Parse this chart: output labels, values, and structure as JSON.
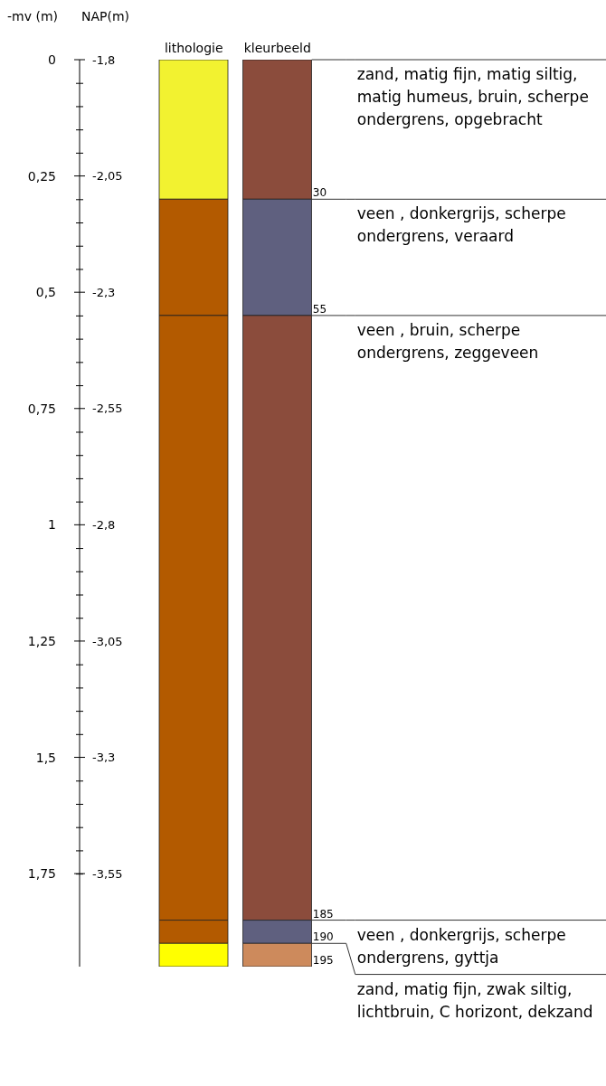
{
  "chart_data": {
    "type": "bar",
    "stacked": true,
    "ylabel": "-mv (m)",
    "y2label": "NAP(m)",
    "categories": [
      "lithologie",
      "kleurbeeld"
    ],
    "series": [
      {
        "name": "zand, matig fijn, matig siltig, matig humeus, bruin, scherpe ondergrens, opgebracht",
        "colors": [
          "#f2f230",
          "#8b4c3c"
        ],
        "values": [
          0.3,
          0.3
        ]
      },
      {
        "name": "veen , donkergrijs, scherpe ondergrens, veraard",
        "colors": [
          "#b35a00",
          "#5f607f"
        ],
        "values": [
          0.25,
          0.25
        ]
      },
      {
        "name": "veen , bruin, scherpe ondergrens, zeggeveen",
        "colors": [
          "#b35a00",
          "#8b4c3c"
        ],
        "values": [
          1.3,
          1.3
        ]
      },
      {
        "name": "veen , donkergrijs, scherpe ondergrens, gyttja",
        "colors": [
          "#b35a00",
          "#5f607f"
        ],
        "values": [
          0.05,
          0.05
        ]
      },
      {
        "name": "zand, matig fijn, zwak siltig, lichtbruin, C horizont, dekzand",
        "colors": [
          "#ffff00",
          "#cd8a5c"
        ],
        "values": [
          0.05,
          0.05
        ]
      }
    ],
    "ylim": [
      1.95,
      0
    ],
    "yticks": [
      0,
      {
        "value": 0.25,
        "label": "0,25"
      },
      {
        "value": 0.5,
        "label": "0,5"
      },
      {
        "value": 0.75,
        "label": "0,75"
      },
      1,
      {
        "value": 1.25,
        "label": "1,25"
      },
      {
        "value": 1.5,
        "label": "1,5"
      },
      {
        "value": 1.75,
        "label": "1,75"
      }
    ],
    "y2lim": [
      -3.75,
      -1.8
    ],
    "y2ticks": [
      {
        "value": -1.8,
        "label": "-1,8"
      },
      {
        "value": -2.05,
        "label": "-2,05"
      },
      {
        "value": -2.3,
        "label": "-2,3"
      },
      {
        "value": -2.55,
        "label": "-2,55"
      },
      {
        "value": -2.8,
        "label": "-2,8"
      },
      {
        "value": -3.05,
        "label": "-3,05"
      },
      {
        "value": -3.3,
        "label": "-3,3"
      },
      {
        "value": -3.55,
        "label": "-3,55"
      }
    ],
    "annotations": [
      "30",
      "55",
      "185",
      "190",
      "195"
    ],
    "legend": false
  }
}
